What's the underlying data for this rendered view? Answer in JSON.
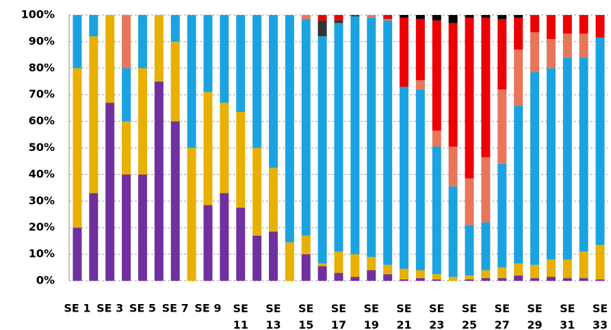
{
  "chart_data": {
    "type": "stacked_bar",
    "categories": [
      "SE 1",
      null,
      "SE 3",
      null,
      "SE 5",
      null,
      "SE 7",
      null,
      "SE 9",
      null,
      "SE 11",
      null,
      "SE 13",
      null,
      "SE 15",
      null,
      "SE 17",
      null,
      "SE 19",
      null,
      "SE 21",
      null,
      "SE 23",
      null,
      "SE 25",
      null,
      "SE 27",
      null,
      "SE 29",
      null,
      "SE 31",
      null,
      "SE 33"
    ],
    "series": [
      {
        "color": "#7030a0",
        "values": [
          20,
          33,
          67,
          40,
          40,
          75,
          60,
          0,
          28.5,
          33,
          27.5,
          17,
          18.5,
          0,
          10,
          5.5,
          3,
          1.5,
          4,
          2.5,
          0.5,
          1,
          0.5,
          0,
          0.5,
          1,
          1,
          2,
          1,
          1.5,
          1,
          1,
          0.5
        ]
      },
      {
        "color": "#e8b000",
        "values": [
          60,
          59,
          33,
          20,
          40,
          25,
          30,
          50,
          42.5,
          34,
          36,
          33,
          24,
          14.5,
          7,
          1,
          8,
          8.5,
          5,
          3.5,
          4,
          3,
          2,
          1.5,
          1.5,
          3,
          4,
          4.5,
          5,
          6.5,
          7,
          10,
          13
        ]
      },
      {
        "color": "#1aa3e0",
        "values": [
          20,
          8,
          0,
          20,
          20,
          0,
          10,
          50,
          29,
          33,
          36.5,
          50,
          57.5,
          85.5,
          81.5,
          85.5,
          86,
          89.5,
          90,
          92,
          68.5,
          68,
          48,
          34,
          19,
          18,
          39,
          59.5,
          72.5,
          72,
          76,
          73,
          78
        ]
      },
      {
        "color": "#e8765a",
        "values": [
          0,
          0,
          0,
          20,
          0,
          0,
          0,
          0,
          0,
          0,
          0,
          0,
          0,
          0,
          1.5,
          0,
          0,
          0,
          1,
          0.5,
          0,
          3.5,
          6,
          15,
          17.5,
          24.5,
          28,
          21,
          15,
          11,
          9,
          9,
          0
        ]
      },
      {
        "color": "#333333",
        "values": [
          0,
          0,
          0,
          0,
          0,
          0,
          0,
          0,
          0,
          0,
          0,
          0,
          0,
          0,
          0,
          6,
          1,
          0.5,
          0,
          0,
          0,
          0,
          0,
          0,
          0,
          0,
          0,
          0,
          0,
          0,
          0,
          0,
          0
        ]
      },
      {
        "color": "#ee0000",
        "values": [
          0,
          0,
          0,
          0,
          0,
          0,
          0,
          0,
          0,
          0,
          0,
          0,
          0,
          0,
          0,
          2,
          2,
          0,
          0,
          1.5,
          26,
          23,
          41.5,
          46.5,
          60.5,
          52.5,
          26.5,
          12,
          6.5,
          9,
          7,
          7,
          8.5
        ]
      },
      {
        "color": "#000000",
        "values": [
          0,
          0,
          0,
          0,
          0,
          0,
          0,
          0,
          0,
          0,
          0,
          0,
          0,
          0,
          0,
          0,
          0,
          0,
          0,
          0,
          1,
          1.5,
          2,
          3,
          1,
          1,
          1.5,
          1,
          0,
          0,
          0,
          0,
          0
        ]
      }
    ],
    "ylim": [
      0,
      100
    ],
    "yticks": [
      {
        "value": 0,
        "label": "0%"
      },
      {
        "value": 10,
        "label": "10%"
      },
      {
        "value": 20,
        "label": "20%"
      },
      {
        "value": 30,
        "label": "30%"
      },
      {
        "value": 40,
        "label": "40%"
      },
      {
        "value": 50,
        "label": "50%"
      },
      {
        "value": 60,
        "label": "60%"
      },
      {
        "value": 70,
        "label": "70%"
      },
      {
        "value": 80,
        "label": "80%"
      },
      {
        "value": 90,
        "label": "90%"
      },
      {
        "value": 100,
        "label": "100%"
      }
    ],
    "grid": true
  }
}
